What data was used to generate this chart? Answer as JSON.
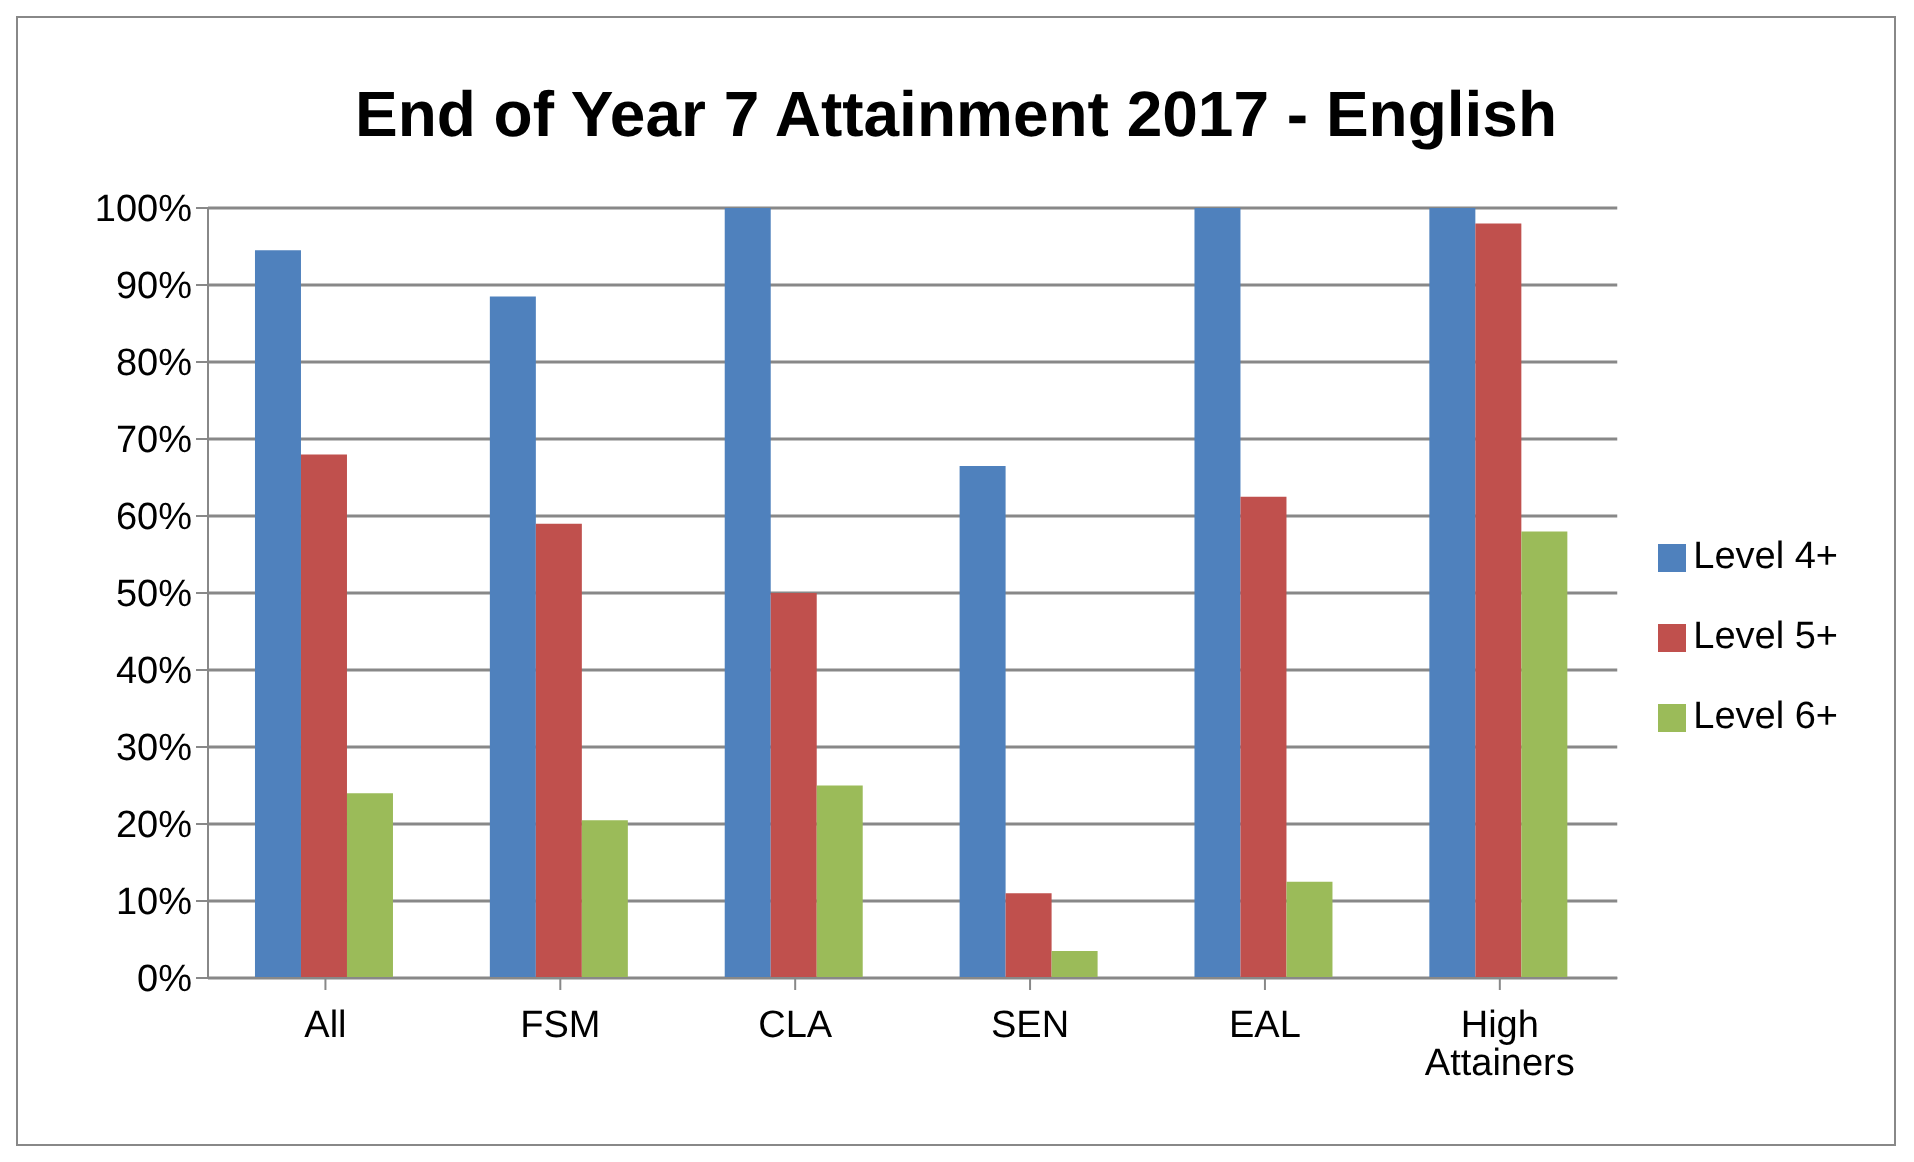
{
  "chart_data": {
    "type": "bar",
    "title": "End of Year 7 Attainment 2017 - English",
    "categories": [
      "All",
      "FSM",
      "CLA",
      "SEN",
      "EAL",
      "High Attainers"
    ],
    "series": [
      {
        "name": "Level 4+",
        "color": "#4f81bd",
        "values": [
          94.5,
          88.5,
          100,
          66.5,
          100,
          100
        ]
      },
      {
        "name": "Level 5+",
        "color": "#c0504d",
        "values": [
          68,
          59,
          50,
          11,
          62.5,
          98
        ]
      },
      {
        "name": "Level 6+",
        "color": "#9bbb59",
        "values": [
          24,
          20.5,
          25,
          3.5,
          12.5,
          58
        ]
      }
    ],
    "ylim": [
      0,
      100
    ],
    "yticks": [
      {
        "value": 0,
        "label": "0%"
      },
      {
        "value": 10,
        "label": "10%"
      },
      {
        "value": 20,
        "label": "20%"
      },
      {
        "value": 30,
        "label": "30%"
      },
      {
        "value": 40,
        "label": "40%"
      },
      {
        "value": 50,
        "label": "50%"
      },
      {
        "value": 60,
        "label": "60%"
      },
      {
        "value": 70,
        "label": "70%"
      },
      {
        "value": 80,
        "label": "80%"
      },
      {
        "value": 90,
        "label": "90%"
      },
      {
        "value": 100,
        "label": "100%"
      }
    ],
    "grid": "y",
    "legend": "right"
  }
}
